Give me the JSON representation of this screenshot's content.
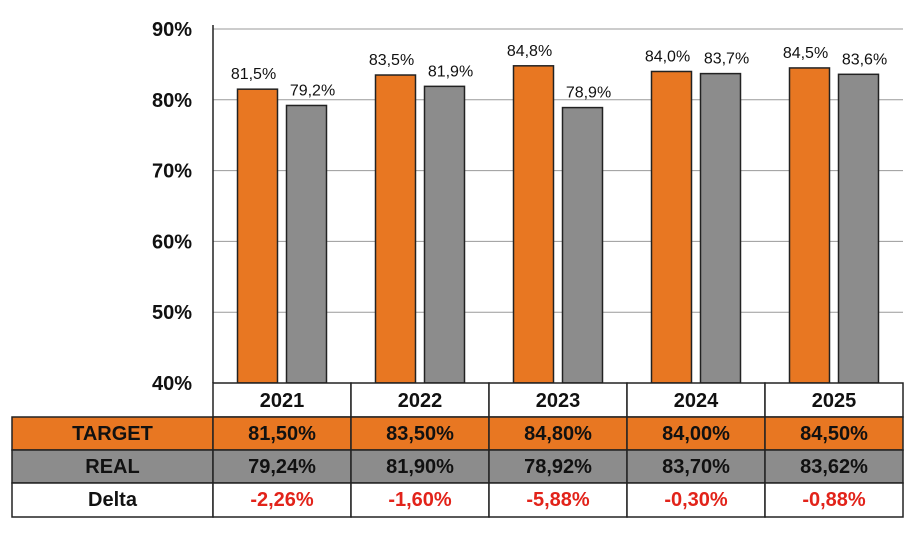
{
  "chart_data": {
    "type": "bar",
    "title": "",
    "xlabel": "",
    "ylabel": "",
    "categories": [
      "2021",
      "2022",
      "2023",
      "2024",
      "2025"
    ],
    "ylim": [
      40,
      90
    ],
    "y_ticks": [
      "40%",
      "50%",
      "60%",
      "70%",
      "80%",
      "90%"
    ],
    "grid": true,
    "series": [
      {
        "name": "TARGET",
        "color": "#E87722",
        "values": [
          81.5,
          83.5,
          84.8,
          84.0,
          84.5
        ],
        "labels": [
          "81,5%",
          "83,5%",
          "84,8%",
          "84,0%",
          "84,5%"
        ]
      },
      {
        "name": "REAL",
        "color": "#8C8C8C",
        "values": [
          79.2,
          81.9,
          78.9,
          83.7,
          83.6
        ],
        "labels": [
          "79,2%",
          "81,9%",
          "78,9%",
          "83,7%",
          "83,6%"
        ]
      }
    ],
    "table": {
      "rows": [
        {
          "label": "TARGET",
          "color": "#E87722",
          "text_color": "#111111",
          "cells": [
            "81,50%",
            "83,50%",
            "84,80%",
            "84,00%",
            "84,50%"
          ]
        },
        {
          "label": "REAL",
          "color": "#8C8C8C",
          "text_color": "#111111",
          "cells": [
            "79,24%",
            "81,90%",
            "78,92%",
            "83,70%",
            "83,62%"
          ]
        },
        {
          "label": "Delta",
          "color": "#FFFFFF",
          "text_color": "#E2231A",
          "cells": [
            "-2,26%",
            "-1,60%",
            "-5,88%",
            "-0,30%",
            "-0,88%"
          ]
        }
      ]
    }
  }
}
